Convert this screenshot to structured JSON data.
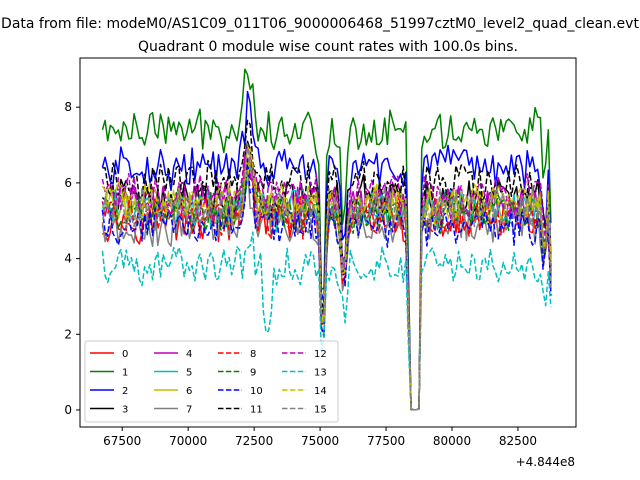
{
  "suptitle": "Data from file: modeM0/AS1C09_011T06_9000006468_51997cztM0_level2_quad_clean.evt",
  "chart_data": {
    "type": "line",
    "title": "Quadrant 0 module wise count rates with 100.0s bins.",
    "xlabel": "",
    "ylabel": "",
    "x_offset_text": "+4.844e8",
    "x_offset": 484400000,
    "xlim": [
      65900,
      84700
    ],
    "ylim": [
      -0.45,
      9.3
    ],
    "xticks": [
      67500,
      70000,
      72500,
      75000,
      77500,
      80000,
      82500
    ],
    "xtick_labels": [
      "67500",
      "70000",
      "72500",
      "75000",
      "77500",
      "80000",
      "82500"
    ],
    "yticks": [
      0,
      2,
      4,
      6,
      8
    ],
    "ytick_labels": [
      "0",
      "2",
      "4",
      "6",
      "8"
    ],
    "x_start": 66750,
    "x_step": 100,
    "n_points": 171,
    "legend_location": "lower-left",
    "legend_columns": 4,
    "series": [
      {
        "name": "0",
        "color": "#ff0000",
        "dash": "solid",
        "base": 5.0
      },
      {
        "name": "1",
        "color": "#008000",
        "dash": "solid",
        "base": 7.4
      },
      {
        "name": "2",
        "color": "#0000ff",
        "dash": "solid",
        "base": 6.4
      },
      {
        "name": "3",
        "color": "#000000",
        "dash": "solid",
        "base": 5.6
      },
      {
        "name": "4",
        "color": "#bf00bf",
        "dash": "solid",
        "base": 5.5
      },
      {
        "name": "5",
        "color": "#00bfbf",
        "dash": "solid",
        "base": 5.3
      },
      {
        "name": "6",
        "color": "#bfbf00",
        "dash": "solid",
        "base": 5.4
      },
      {
        "name": "7",
        "color": "#808080",
        "dash": "solid",
        "base": 4.9
      },
      {
        "name": "8",
        "color": "#ff0000",
        "dash": "dashed",
        "base": 5.1
      },
      {
        "name": "9",
        "color": "#008000",
        "dash": "dashed",
        "base": 5.2
      },
      {
        "name": "10",
        "color": "#0000ff",
        "dash": "dashed",
        "base": 4.9
      },
      {
        "name": "11",
        "color": "#000000",
        "dash": "dashed",
        "base": 6.0
      },
      {
        "name": "12",
        "color": "#bf00bf",
        "dash": "dashed",
        "base": 5.7
      },
      {
        "name": "13",
        "color": "#00bfbf",
        "dash": "dashed",
        "base": 3.8
      },
      {
        "name": "14",
        "color": "#bfbf00",
        "dash": "dashed",
        "base": 5.5
      },
      {
        "name": "15",
        "color": "#808080",
        "dash": "dashed",
        "base": 5.3
      }
    ],
    "features": {
      "peak": {
        "x": 72300,
        "width": 220,
        "scale": 1.25
      },
      "dips": [
        {
          "x": 75100,
          "width": 110,
          "depth": 0.68
        },
        {
          "x": 75900,
          "width": 130,
          "depth": 0.35
        },
        {
          "x": 78400,
          "width": 80,
          "depth": 0.7
        },
        {
          "x": 78600,
          "width": 160,
          "depth": 1.0
        },
        {
          "x": 83500,
          "width": 90,
          "depth": 0.25
        },
        {
          "x": 83800,
          "width": 60,
          "depth": 0.7
        }
      ]
    }
  }
}
